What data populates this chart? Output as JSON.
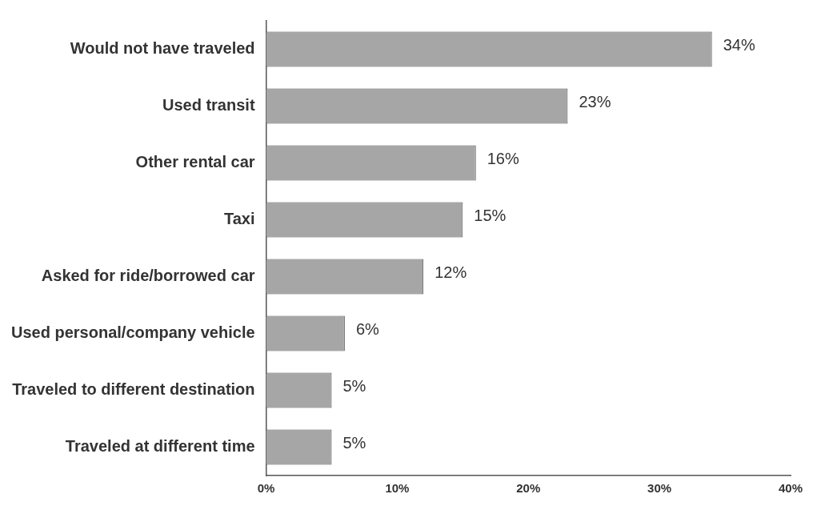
{
  "chart_data": {
    "type": "bar",
    "orientation": "horizontal",
    "categories": [
      "Would not have traveled",
      "Used transit",
      "Other rental car",
      "Taxi",
      "Asked for ride/borrowed car",
      "Used personal/company vehicle",
      "Traveled to different destination",
      "Traveled at different time"
    ],
    "values": [
      34,
      23,
      16,
      15,
      12,
      6,
      5,
      5
    ],
    "value_labels": [
      "34%",
      "23%",
      "16%",
      "15%",
      "12%",
      "6%",
      "5%",
      "5%"
    ],
    "color": "#a6a6a6",
    "xlim": [
      0,
      40
    ],
    "xticks": [
      {
        "value": 0,
        "label": "0%"
      },
      {
        "value": 10,
        "label": "10%"
      },
      {
        "value": 20,
        "label": "20%"
      },
      {
        "value": 30,
        "label": "30%"
      },
      {
        "value": 40,
        "label": "40%"
      }
    ],
    "grid": false,
    "legend": false
  }
}
